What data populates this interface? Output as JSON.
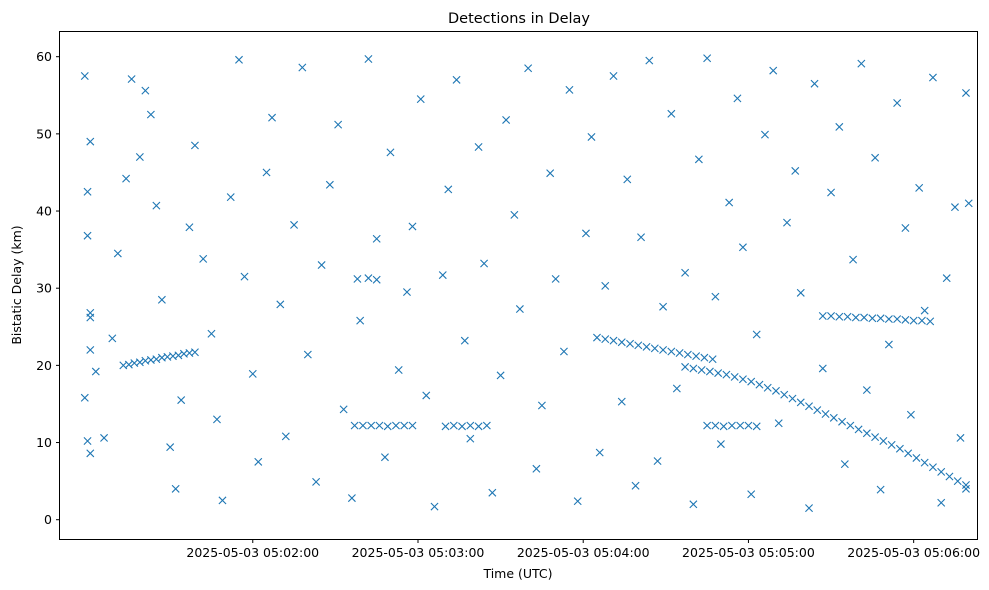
{
  "chart_data": {
    "type": "scatter",
    "title": "Detections in Delay",
    "xlabel": "Time (UTC)",
    "ylabel": "Bistatic Delay (km)",
    "x_axis_type": "time",
    "xlim": [
      "2025-05-03 05:00:50",
      "2025-05-03 05:06:23"
    ],
    "ylim": [
      -2.5,
      63.2
    ],
    "xticks": [
      "2025-05-03 05:02:00",
      "2025-05-03 05:03:00",
      "2025-05-03 05:04:00",
      "2025-05-03 05:05:00",
      "2025-05-03 05:06:00"
    ],
    "yticks": [
      0,
      10,
      20,
      30,
      40,
      50,
      60
    ],
    "grid": false,
    "marker": "x",
    "color": "#1f77b4",
    "series": [
      {
        "points": [
          [
            "2025-05-03 05:01:13",
            20.0
          ],
          [
            "2025-05-03 05:01:15",
            20.1
          ],
          [
            "2025-05-03 05:01:17",
            20.3
          ],
          [
            "2025-05-03 05:01:19",
            20.4
          ],
          [
            "2025-05-03 05:01:21",
            20.6
          ],
          [
            "2025-05-03 05:01:23",
            20.7
          ],
          [
            "2025-05-03 05:01:25",
            20.8
          ],
          [
            "2025-05-03 05:01:27",
            21.0
          ],
          [
            "2025-05-03 05:01:29",
            21.1
          ],
          [
            "2025-05-03 05:01:31",
            21.2
          ],
          [
            "2025-05-03 05:01:33",
            21.3
          ],
          [
            "2025-05-03 05:01:35",
            21.5
          ],
          [
            "2025-05-03 05:01:37",
            21.6
          ],
          [
            "2025-05-03 05:01:39",
            21.7
          ],
          [
            "2025-05-03 05:02:37",
            12.2
          ],
          [
            "2025-05-03 05:02:40",
            12.2
          ],
          [
            "2025-05-03 05:02:43",
            12.2
          ],
          [
            "2025-05-03 05:02:46",
            12.2
          ],
          [
            "2025-05-03 05:02:49",
            12.1
          ],
          [
            "2025-05-03 05:02:52",
            12.2
          ],
          [
            "2025-05-03 05:02:55",
            12.2
          ],
          [
            "2025-05-03 05:02:58",
            12.2
          ],
          [
            "2025-05-03 05:03:10",
            12.1
          ],
          [
            "2025-05-03 05:03:13",
            12.2
          ],
          [
            "2025-05-03 05:03:16",
            12.1
          ],
          [
            "2025-05-03 05:03:19",
            12.2
          ],
          [
            "2025-05-03 05:03:22",
            12.1
          ],
          [
            "2025-05-03 05:03:25",
            12.2
          ],
          [
            "2025-05-03 05:02:38",
            31.2
          ],
          [
            "2025-05-03 05:02:42",
            31.3
          ],
          [
            "2025-05-03 05:02:45",
            31.1
          ],
          [
            "2025-05-03 05:04:05",
            23.6
          ],
          [
            "2025-05-03 05:04:08",
            23.4
          ],
          [
            "2025-05-03 05:04:11",
            23.2
          ],
          [
            "2025-05-03 05:04:14",
            23.0
          ],
          [
            "2025-05-03 05:04:17",
            22.8
          ],
          [
            "2025-05-03 05:04:20",
            22.6
          ],
          [
            "2025-05-03 05:04:23",
            22.4
          ],
          [
            "2025-05-03 05:04:26",
            22.2
          ],
          [
            "2025-05-03 05:04:29",
            22.0
          ],
          [
            "2025-05-03 05:04:32",
            21.8
          ],
          [
            "2025-05-03 05:04:35",
            21.6
          ],
          [
            "2025-05-03 05:04:38",
            21.4
          ],
          [
            "2025-05-03 05:04:41",
            21.2
          ],
          [
            "2025-05-03 05:04:44",
            21.0
          ],
          [
            "2025-05-03 05:04:47",
            20.8
          ],
          [
            "2025-05-03 05:04:37",
            19.8
          ],
          [
            "2025-05-03 05:04:40",
            19.6
          ],
          [
            "2025-05-03 05:04:43",
            19.4
          ],
          [
            "2025-05-03 05:04:46",
            19.2
          ],
          [
            "2025-05-03 05:04:49",
            19.0
          ],
          [
            "2025-05-03 05:04:52",
            18.8
          ],
          [
            "2025-05-03 05:04:55",
            18.5
          ],
          [
            "2025-05-03 05:04:58",
            18.2
          ],
          [
            "2025-05-03 05:05:01",
            17.9
          ],
          [
            "2025-05-03 05:05:04",
            17.5
          ],
          [
            "2025-05-03 05:05:07",
            17.1
          ],
          [
            "2025-05-03 05:05:10",
            16.7
          ],
          [
            "2025-05-03 05:05:13",
            16.2
          ],
          [
            "2025-05-03 05:05:16",
            15.7
          ],
          [
            "2025-05-03 05:05:19",
            15.2
          ],
          [
            "2025-05-03 05:05:22",
            14.7
          ],
          [
            "2025-05-03 05:05:25",
            14.2
          ],
          [
            "2025-05-03 05:05:28",
            13.7
          ],
          [
            "2025-05-03 05:05:31",
            13.2
          ],
          [
            "2025-05-03 05:05:34",
            12.7
          ],
          [
            "2025-05-03 05:05:37",
            12.2
          ],
          [
            "2025-05-03 05:05:40",
            11.7
          ],
          [
            "2025-05-03 05:05:43",
            11.2
          ],
          [
            "2025-05-03 05:05:46",
            10.7
          ],
          [
            "2025-05-03 05:05:49",
            10.2
          ],
          [
            "2025-05-03 05:05:52",
            9.7
          ],
          [
            "2025-05-03 05:05:55",
            9.2
          ],
          [
            "2025-05-03 05:05:58",
            8.6
          ],
          [
            "2025-05-03 05:06:01",
            8.0
          ],
          [
            "2025-05-03 05:06:04",
            7.4
          ],
          [
            "2025-05-03 05:06:07",
            6.8
          ],
          [
            "2025-05-03 05:06:10",
            6.2
          ],
          [
            "2025-05-03 05:06:13",
            5.6
          ],
          [
            "2025-05-03 05:06:16",
            5.0
          ],
          [
            "2025-05-03 05:06:19",
            4.5
          ],
          [
            "2025-05-03 05:04:45",
            12.2
          ],
          [
            "2025-05-03 05:04:48",
            12.2
          ],
          [
            "2025-05-03 05:04:51",
            12.1
          ],
          [
            "2025-05-03 05:04:54",
            12.2
          ],
          [
            "2025-05-03 05:04:57",
            12.2
          ],
          [
            "2025-05-03 05:05:00",
            12.2
          ],
          [
            "2025-05-03 05:05:03",
            12.1
          ],
          [
            "2025-05-03 05:05:27",
            26.4
          ],
          [
            "2025-05-03 05:05:30",
            26.4
          ],
          [
            "2025-05-03 05:05:33",
            26.3
          ],
          [
            "2025-05-03 05:05:36",
            26.3
          ],
          [
            "2025-05-03 05:05:39",
            26.2
          ],
          [
            "2025-05-03 05:05:42",
            26.2
          ],
          [
            "2025-05-03 05:05:45",
            26.1
          ],
          [
            "2025-05-03 05:05:48",
            26.1
          ],
          [
            "2025-05-03 05:05:51",
            26.0
          ],
          [
            "2025-05-03 05:05:54",
            26.0
          ],
          [
            "2025-05-03 05:05:57",
            25.9
          ],
          [
            "2025-05-03 05:06:00",
            25.8
          ],
          [
            "2025-05-03 05:06:03",
            25.8
          ],
          [
            "2025-05-03 05:06:06",
            25.7
          ],
          [
            "2025-05-03 05:00:59",
            57.5
          ],
          [
            "2025-05-03 05:01:01",
            49.0
          ],
          [
            "2025-05-03 05:01:00",
            42.5
          ],
          [
            "2025-05-03 05:01:00",
            36.8
          ],
          [
            "2025-05-03 05:01:01",
            26.8
          ],
          [
            "2025-05-03 05:01:01",
            26.2
          ],
          [
            "2025-05-03 05:01:01",
            22.0
          ],
          [
            "2025-05-03 05:00:59",
            15.8
          ],
          [
            "2025-05-03 05:01:00",
            10.2
          ],
          [
            "2025-05-03 05:01:01",
            8.6
          ],
          [
            "2025-05-03 05:01:03",
            19.2
          ],
          [
            "2025-05-03 05:01:06",
            10.6
          ],
          [
            "2025-05-03 05:01:09",
            23.5
          ],
          [
            "2025-05-03 05:01:11",
            34.5
          ],
          [
            "2025-05-03 05:01:14",
            44.2
          ],
          [
            "2025-05-03 05:01:16",
            57.1
          ],
          [
            "2025-05-03 05:01:19",
            47.0
          ],
          [
            "2025-05-03 05:01:21",
            55.6
          ],
          [
            "2025-05-03 05:01:23",
            52.5
          ],
          [
            "2025-05-03 05:01:25",
            40.7
          ],
          [
            "2025-05-03 05:01:27",
            28.5
          ],
          [
            "2025-05-03 05:01:30",
            9.4
          ],
          [
            "2025-05-03 05:01:32",
            4.0
          ],
          [
            "2025-05-03 05:01:34",
            15.5
          ],
          [
            "2025-05-03 05:01:37",
            37.9
          ],
          [
            "2025-05-03 05:01:39",
            48.5
          ],
          [
            "2025-05-03 05:01:42",
            33.8
          ],
          [
            "2025-05-03 05:01:45",
            24.1
          ],
          [
            "2025-05-03 05:01:47",
            13.0
          ],
          [
            "2025-05-03 05:01:49",
            2.5
          ],
          [
            "2025-05-03 05:01:52",
            41.8
          ],
          [
            "2025-05-03 05:01:55",
            59.6
          ],
          [
            "2025-05-03 05:01:57",
            31.5
          ],
          [
            "2025-05-03 05:02:00",
            18.9
          ],
          [
            "2025-05-03 05:02:02",
            7.5
          ],
          [
            "2025-05-03 05:02:05",
            45.0
          ],
          [
            "2025-05-03 05:02:07",
            52.1
          ],
          [
            "2025-05-03 05:02:10",
            27.9
          ],
          [
            "2025-05-03 05:02:12",
            10.8
          ],
          [
            "2025-05-03 05:02:15",
            38.2
          ],
          [
            "2025-05-03 05:02:18",
            58.6
          ],
          [
            "2025-05-03 05:02:20",
            21.4
          ],
          [
            "2025-05-03 05:02:23",
            4.9
          ],
          [
            "2025-05-03 05:02:25",
            33.0
          ],
          [
            "2025-05-03 05:02:28",
            43.4
          ],
          [
            "2025-05-03 05:02:31",
            51.2
          ],
          [
            "2025-05-03 05:02:33",
            14.3
          ],
          [
            "2025-05-03 05:02:36",
            2.8
          ],
          [
            "2025-05-03 05:02:39",
            25.8
          ],
          [
            "2025-05-03 05:02:42",
            59.7
          ],
          [
            "2025-05-03 05:02:45",
            36.4
          ],
          [
            "2025-05-03 05:02:48",
            8.1
          ],
          [
            "2025-05-03 05:02:50",
            47.6
          ],
          [
            "2025-05-03 05:02:53",
            19.4
          ],
          [
            "2025-05-03 05:02:56",
            29.5
          ],
          [
            "2025-05-03 05:02:58",
            38.0
          ],
          [
            "2025-05-03 05:03:01",
            54.5
          ],
          [
            "2025-05-03 05:03:03",
            16.1
          ],
          [
            "2025-05-03 05:03:06",
            1.7
          ],
          [
            "2025-05-03 05:03:09",
            31.7
          ],
          [
            "2025-05-03 05:03:11",
            42.8
          ],
          [
            "2025-05-03 05:03:14",
            57.0
          ],
          [
            "2025-05-03 05:03:17",
            23.2
          ],
          [
            "2025-05-03 05:03:19",
            10.5
          ],
          [
            "2025-05-03 05:03:22",
            48.3
          ],
          [
            "2025-05-03 05:03:24",
            33.2
          ],
          [
            "2025-05-03 05:03:27",
            3.5
          ],
          [
            "2025-05-03 05:03:30",
            18.7
          ],
          [
            "2025-05-03 05:03:32",
            51.8
          ],
          [
            "2025-05-03 05:03:35",
            39.5
          ],
          [
            "2025-05-03 05:03:37",
            27.3
          ],
          [
            "2025-05-03 05:03:40",
            58.5
          ],
          [
            "2025-05-03 05:03:43",
            6.6
          ],
          [
            "2025-05-03 05:03:45",
            14.8
          ],
          [
            "2025-05-03 05:03:48",
            44.9
          ],
          [
            "2025-05-03 05:03:50",
            31.2
          ],
          [
            "2025-05-03 05:03:53",
            21.8
          ],
          [
            "2025-05-03 05:03:55",
            55.7
          ],
          [
            "2025-05-03 05:03:58",
            2.4
          ],
          [
            "2025-05-03 05:04:01",
            37.1
          ],
          [
            "2025-05-03 05:04:03",
            49.6
          ],
          [
            "2025-05-03 05:04:06",
            8.7
          ],
          [
            "2025-05-03 05:04:08",
            30.3
          ],
          [
            "2025-05-03 05:04:11",
            57.5
          ],
          [
            "2025-05-03 05:04:14",
            15.3
          ],
          [
            "2025-05-03 05:04:16",
            44.1
          ],
          [
            "2025-05-03 05:04:19",
            4.4
          ],
          [
            "2025-05-03 05:04:21",
            36.6
          ],
          [
            "2025-05-03 05:04:24",
            59.5
          ],
          [
            "2025-05-03 05:04:27",
            7.6
          ],
          [
            "2025-05-03 05:04:29",
            27.6
          ],
          [
            "2025-05-03 05:04:32",
            52.6
          ],
          [
            "2025-05-03 05:04:34",
            17.0
          ],
          [
            "2025-05-03 05:04:37",
            32.0
          ],
          [
            "2025-05-03 05:04:40",
            2.0
          ],
          [
            "2025-05-03 05:04:42",
            46.7
          ],
          [
            "2025-05-03 05:04:45",
            59.8
          ],
          [
            "2025-05-03 05:04:48",
            28.9
          ],
          [
            "2025-05-03 05:04:50",
            9.8
          ],
          [
            "2025-05-03 05:04:53",
            41.1
          ],
          [
            "2025-05-03 05:04:56",
            54.6
          ],
          [
            "2025-05-03 05:04:58",
            35.3
          ],
          [
            "2025-05-03 05:05:01",
            3.3
          ],
          [
            "2025-05-03 05:05:03",
            24.0
          ],
          [
            "2025-05-03 05:05:06",
            49.9
          ],
          [
            "2025-05-03 05:05:09",
            58.2
          ],
          [
            "2025-05-03 05:05:11",
            12.5
          ],
          [
            "2025-05-03 05:05:14",
            38.5
          ],
          [
            "2025-05-03 05:05:17",
            45.2
          ],
          [
            "2025-05-03 05:05:19",
            29.4
          ],
          [
            "2025-05-03 05:05:22",
            1.5
          ],
          [
            "2025-05-03 05:05:24",
            56.5
          ],
          [
            "2025-05-03 05:05:27",
            19.6
          ],
          [
            "2025-05-03 05:05:30",
            42.4
          ],
          [
            "2025-05-03 05:05:33",
            50.9
          ],
          [
            "2025-05-03 05:05:35",
            7.2
          ],
          [
            "2025-05-03 05:05:38",
            33.7
          ],
          [
            "2025-05-03 05:05:41",
            59.1
          ],
          [
            "2025-05-03 05:05:43",
            16.8
          ],
          [
            "2025-05-03 05:05:46",
            46.9
          ],
          [
            "2025-05-03 05:05:48",
            3.9
          ],
          [
            "2025-05-03 05:05:51",
            22.7
          ],
          [
            "2025-05-03 05:05:54",
            54.0
          ],
          [
            "2025-05-03 05:05:57",
            37.8
          ],
          [
            "2025-05-03 05:05:59",
            13.6
          ],
          [
            "2025-05-03 05:06:02",
            43.0
          ],
          [
            "2025-05-03 05:06:04",
            27.1
          ],
          [
            "2025-05-03 05:06:07",
            57.3
          ],
          [
            "2025-05-03 05:06:10",
            2.2
          ],
          [
            "2025-05-03 05:06:12",
            31.3
          ],
          [
            "2025-05-03 05:06:15",
            40.5
          ],
          [
            "2025-05-03 05:06:17",
            10.6
          ],
          [
            "2025-05-03 05:06:19",
            55.3
          ],
          [
            "2025-05-03 05:06:20",
            41.0
          ],
          [
            "2025-05-03 05:06:19",
            4.0
          ]
        ]
      }
    ]
  }
}
